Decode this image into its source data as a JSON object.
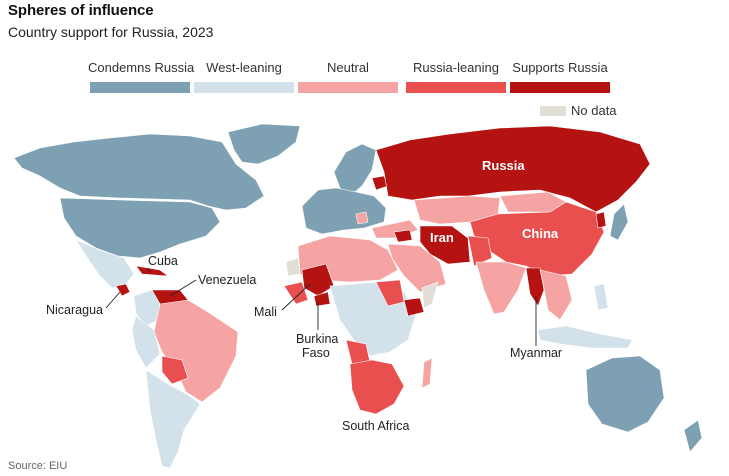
{
  "title": "Spheres of influence",
  "subtitle": "Country support for Russia, 2023",
  "source": "Source: EIU",
  "legend": [
    {
      "label": "Condemns Russia",
      "color": "#7da1b3"
    },
    {
      "label": "West-leaning",
      "color": "#d3e1ea"
    },
    {
      "label": "Neutral",
      "color": "#f5a3a3"
    },
    {
      "label": "Russia-leaning",
      "color": "#ea4f4f"
    },
    {
      "label": "Supports Russia",
      "color": "#b51212"
    }
  ],
  "no_data": {
    "label": "No data",
    "color": "#e1ded6"
  },
  "labels": {
    "russia": "Russia",
    "china": "China",
    "iran": "Iran",
    "cuba": "Cuba",
    "venezuela": "Venezuela",
    "nicaragua": "Nicaragua",
    "mali": "Mali",
    "burkina_line1": "Burkina",
    "burkina_line2": "Faso",
    "myanmar": "Myanmar",
    "south_africa": "South Africa"
  }
}
